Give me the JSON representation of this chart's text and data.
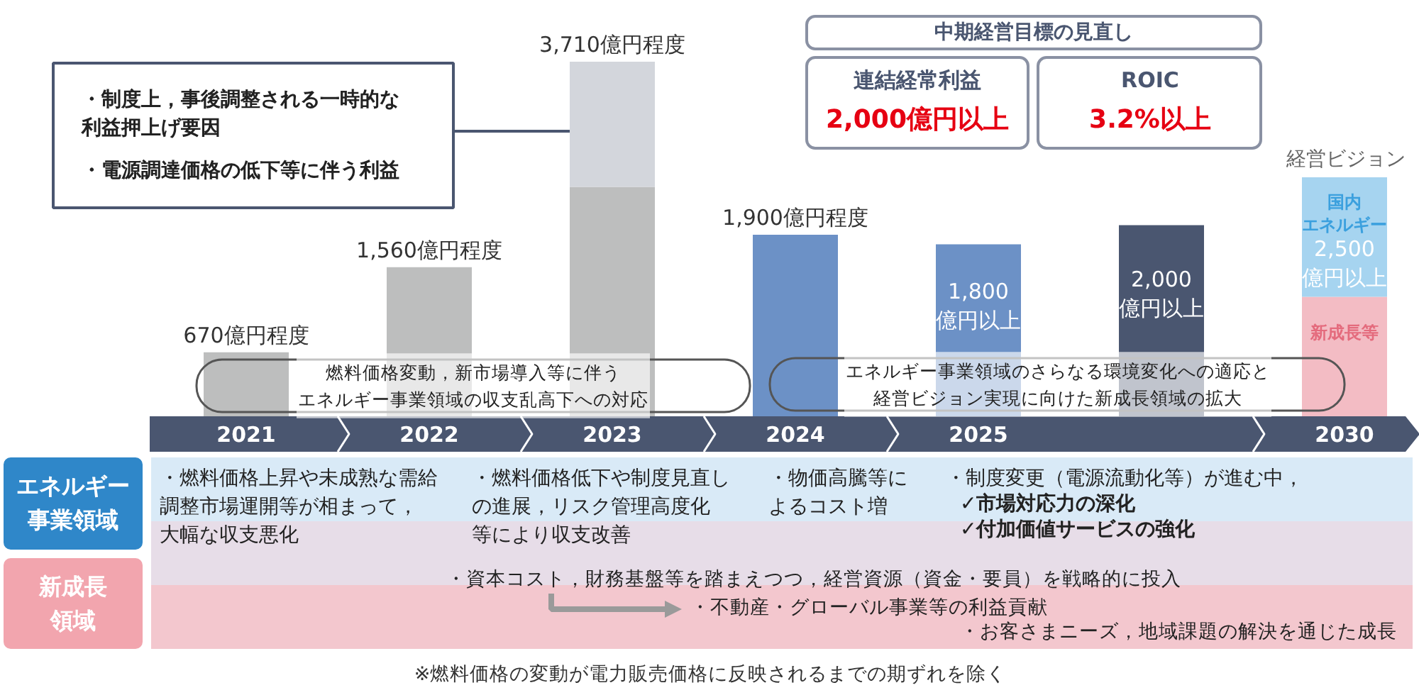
{
  "chart_data": {
    "type": "bar",
    "stacked": true,
    "categories": [
      "2021",
      "2022",
      "2023",
      "2024",
      "2025",
      null,
      "2030"
    ],
    "series": [
      {
        "color": "#bdbebe",
        "values": [
          670,
          1560,
          2400,
          null,
          null,
          null,
          null
        ],
        "value_labels": [
          "670億円程度",
          "1,560億円程度",
          null,
          null,
          null,
          null,
          null
        ]
      },
      {
        "color": "#d3d6dc",
        "values": [
          null,
          null,
          1310,
          null,
          null,
          null,
          null
        ]
      },
      {
        "color": "#6c91c6",
        "values": [
          null,
          null,
          null,
          1900,
          1800,
          null,
          null
        ],
        "value_labels": [
          null,
          null,
          null,
          "1,900億円程度",
          "1,800億円以上",
          null,
          null
        ]
      },
      {
        "color": "#4a5670",
        "values": [
          null,
          null,
          null,
          null,
          null,
          2000,
          null
        ],
        "value_labels": [
          null,
          null,
          null,
          null,
          null,
          "2,000億円以上",
          null
        ]
      },
      {
        "name": "新成長等",
        "color": "#f3bcc4",
        "values": [
          null,
          null,
          null,
          null,
          null,
          null,
          1250
        ]
      },
      {
        "name": "国内エネルギー",
        "color": "#a6d4f0",
        "values": [
          null,
          null,
          null,
          null,
          null,
          null,
          1250
        ]
      }
    ],
    "totals": [
      null,
      null,
      "3,710億円程度",
      null,
      null,
      null,
      "2,500億円以上"
    ],
    "annotations": [
      "・制度上，事後調整される一時的な利益押上げ要因",
      "・電源調達価格の低下等に伴う利益",
      "中期経営目標の見直し",
      "連結経常利益",
      "2,000億円以上",
      "ROIC",
      "3.2%以上",
      "経営ビジョン",
      "燃料価格変動，新市場導入等に伴うエネルギー事業領域の収支乱高下への対応",
      "エネルギー事業領域のさらなる環境変化への適応と経営ビジョン実現に向けた新成長領域の拡大",
      "エネルギー事業領域",
      "新成長領域",
      "・燃料価格上昇や未成熟な需給調整市場運開等が相まって，大幅な収支悪化",
      "・燃料価格低下や制度見直しの進展，リスク管理高度化等により収支改善",
      "・物価高騰等によるコスト増",
      "・制度変更（電源流動化等）が進む中，",
      "✓市場対応力の深化",
      "✓付加価値サービスの強化",
      "・資本コスト，財務基盤等を踏まえつつ，経営資源（資金・要員）を戦略的に投入",
      "・不動産・グローバル事業等の利益貢献",
      "・お客さまニーズ，地域課題の解決を通じた成長",
      "※燃料価格の変動が電力販売価格に反映されるまでの期ずれを除く"
    ]
  }
}
